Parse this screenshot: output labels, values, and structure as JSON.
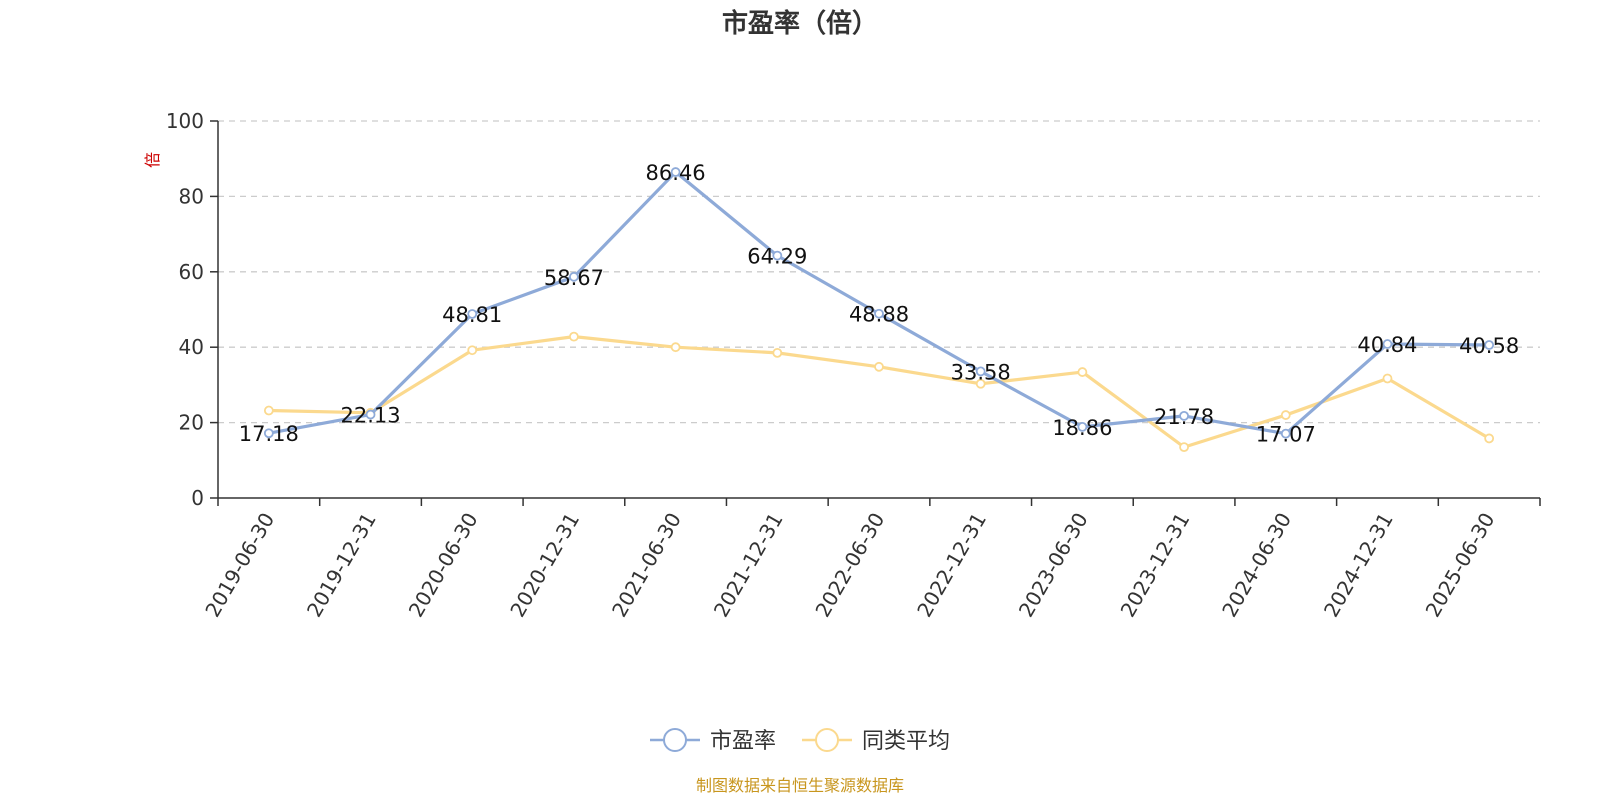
{
  "chart_data": {
    "type": "line",
    "title": "市盈率（倍）",
    "ylabel": "倍",
    "ylim": [
      0,
      100
    ],
    "yticks": [
      0,
      20,
      40,
      60,
      80,
      100
    ],
    "grid": true,
    "legend_position": "bottom-center",
    "categories": [
      "2019-06-30",
      "2019-12-31",
      "2020-06-30",
      "2020-12-31",
      "2021-06-30",
      "2021-12-31",
      "2022-06-30",
      "2022-12-31",
      "2023-06-30",
      "2023-12-31",
      "2024-06-30",
      "2024-12-31",
      "2025-06-30"
    ],
    "series": [
      {
        "name": "市盈率",
        "color": "#8eaad8",
        "values": [
          17.18,
          22.13,
          48.81,
          58.67,
          86.46,
          64.29,
          48.88,
          33.58,
          18.86,
          21.78,
          17.07,
          40.84,
          40.58
        ],
        "labels": [
          "17.18",
          "22.13",
          "48.81",
          "58.67",
          "86.46",
          "64.29",
          "48.88",
          "33.58",
          "18.86",
          "21.78",
          "17.07",
          "40.84",
          "40.58"
        ]
      },
      {
        "name": "同类平均",
        "color": "#fbd98e",
        "values": [
          23.2,
          22.6,
          39.2,
          42.8,
          40.0,
          38.5,
          34.8,
          30.3,
          33.4,
          13.5,
          22.0,
          31.7,
          15.8
        ]
      }
    ],
    "source": "制图数据来自恒生聚源数据库"
  }
}
